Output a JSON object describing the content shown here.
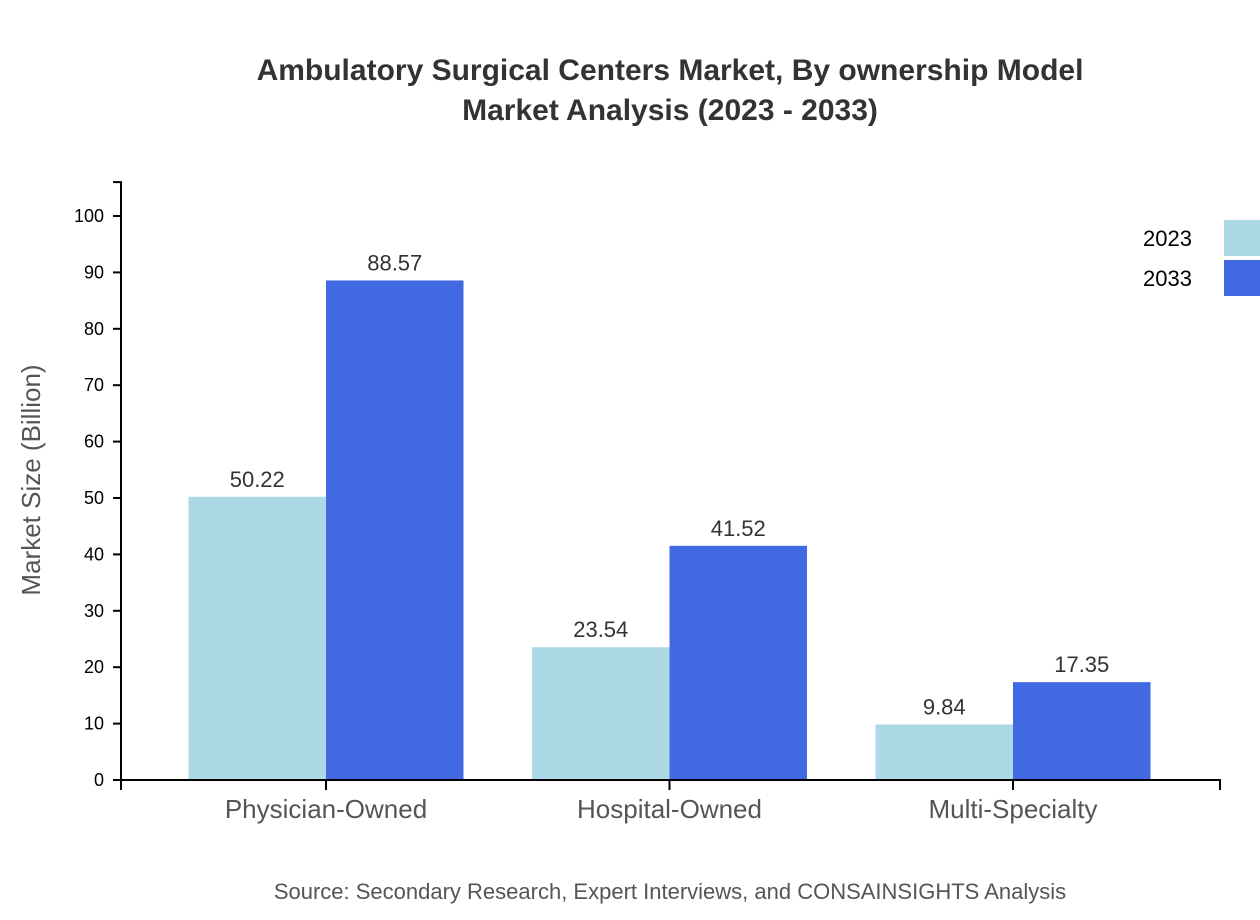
{
  "chart_data": {
    "type": "bar",
    "title": "Ambulatory Surgical Centers Market, By ownership Model",
    "subtitle": "Market Analysis (2023 - 2033)",
    "xlabel": "",
    "ylabel": "Market Size (Billion)",
    "categories": [
      "Physician-Owned",
      "Hospital-Owned",
      "Multi-Specialty"
    ],
    "series": [
      {
        "name": "2023",
        "color": "#add8e6",
        "values": [
          50.22,
          23.54,
          9.84
        ]
      },
      {
        "name": "2033",
        "color": "#4169e1",
        "values": [
          88.57,
          41.52,
          17.35
        ]
      }
    ],
    "yticks": [
      0,
      10,
      20,
      30,
      40,
      50,
      60,
      70,
      80,
      90,
      100
    ],
    "ylim": [
      0,
      106
    ],
    "grid": false,
    "legend_position": "top-right",
    "source": "Source: Secondary Research, Expert Interviews, and CONSAINSIGHTS Analysis"
  }
}
